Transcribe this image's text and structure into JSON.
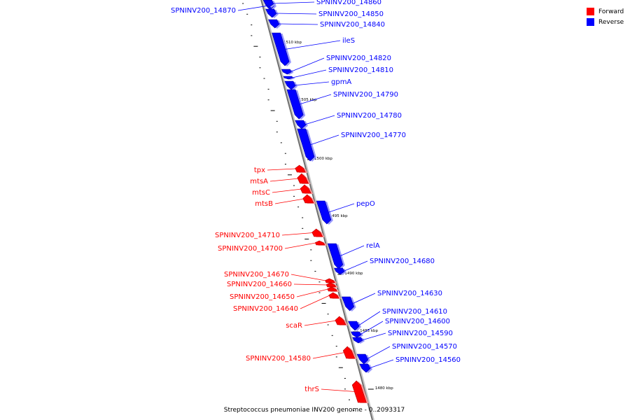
{
  "legend": {
    "forward_label": "Forward",
    "reverse_label": "Reverse",
    "forward_color": "#ff0000",
    "reverse_color": "#0000ff"
  },
  "caption": "Streptococcus pneumoniae INV200 genome - 0..2093317",
  "ticks": [
    "1510 kbp",
    "1505 kbp",
    "1500 kbp",
    "1495 kbp",
    "1490 kbp",
    "1485 kbp",
    "1480 kbp"
  ],
  "genes": [
    {
      "name": "SPNINV200_14870",
      "strand": "reverse"
    },
    {
      "name": "SPNINV200_14860",
      "strand": "reverse"
    },
    {
      "name": "SPNINV200_14850",
      "strand": "reverse"
    },
    {
      "name": "SPNINV200_14840",
      "strand": "reverse"
    },
    {
      "name": "ileS",
      "strand": "reverse"
    },
    {
      "name": "SPNINV200_14820",
      "strand": "reverse"
    },
    {
      "name": "SPNINV200_14810",
      "strand": "reverse"
    },
    {
      "name": "gpmA",
      "strand": "reverse"
    },
    {
      "name": "SPNINV200_14790",
      "strand": "reverse"
    },
    {
      "name": "SPNINV200_14780",
      "strand": "reverse"
    },
    {
      "name": "SPNINV200_14770",
      "strand": "reverse"
    },
    {
      "name": "tpx",
      "strand": "forward"
    },
    {
      "name": "mtsA",
      "strand": "forward"
    },
    {
      "name": "mtsC",
      "strand": "forward"
    },
    {
      "name": "mtsB",
      "strand": "forward"
    },
    {
      "name": "pepO",
      "strand": "reverse"
    },
    {
      "name": "SPNINV200_14710",
      "strand": "forward"
    },
    {
      "name": "SPNINV200_14700",
      "strand": "forward"
    },
    {
      "name": "relA",
      "strand": "reverse"
    },
    {
      "name": "SPNINV200_14680",
      "strand": "reverse"
    },
    {
      "name": "SPNINV200_14670",
      "strand": "forward"
    },
    {
      "name": "SPNINV200_14660",
      "strand": "forward"
    },
    {
      "name": "SPNINV200_14650",
      "strand": "forward"
    },
    {
      "name": "SPNINV200_14640",
      "strand": "forward"
    },
    {
      "name": "SPNINV200_14630",
      "strand": "reverse"
    },
    {
      "name": "SPNINV200_14610",
      "strand": "reverse"
    },
    {
      "name": "SPNINV200_14600",
      "strand": "reverse"
    },
    {
      "name": "SPNINV200_14590",
      "strand": "reverse"
    },
    {
      "name": "scaR",
      "strand": "forward"
    },
    {
      "name": "SPNINV200_14570",
      "strand": "reverse"
    },
    {
      "name": "SPNINV200_14580",
      "strand": "forward"
    },
    {
      "name": "SPNINV200_14560",
      "strand": "reverse"
    },
    {
      "name": "thrS",
      "strand": "forward"
    }
  ]
}
